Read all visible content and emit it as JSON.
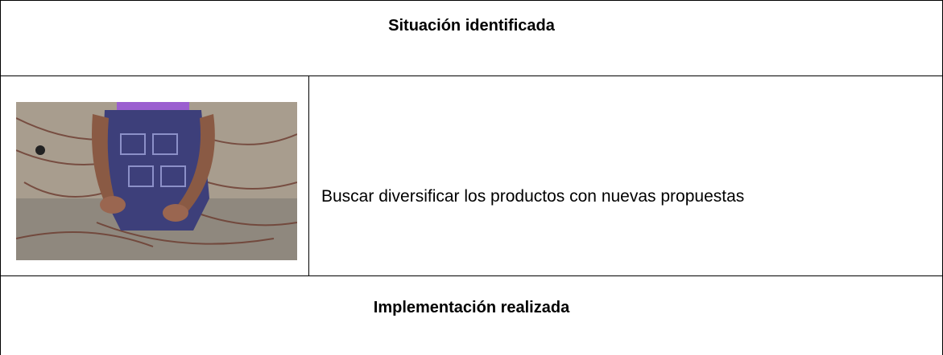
{
  "table": {
    "rows": [
      {
        "heading": "Situación identificada"
      },
      {
        "description": "Buscar diversificar los productos con nuevas propuestas"
      },
      {
        "heading": "Implementación realizada"
      }
    ]
  }
}
